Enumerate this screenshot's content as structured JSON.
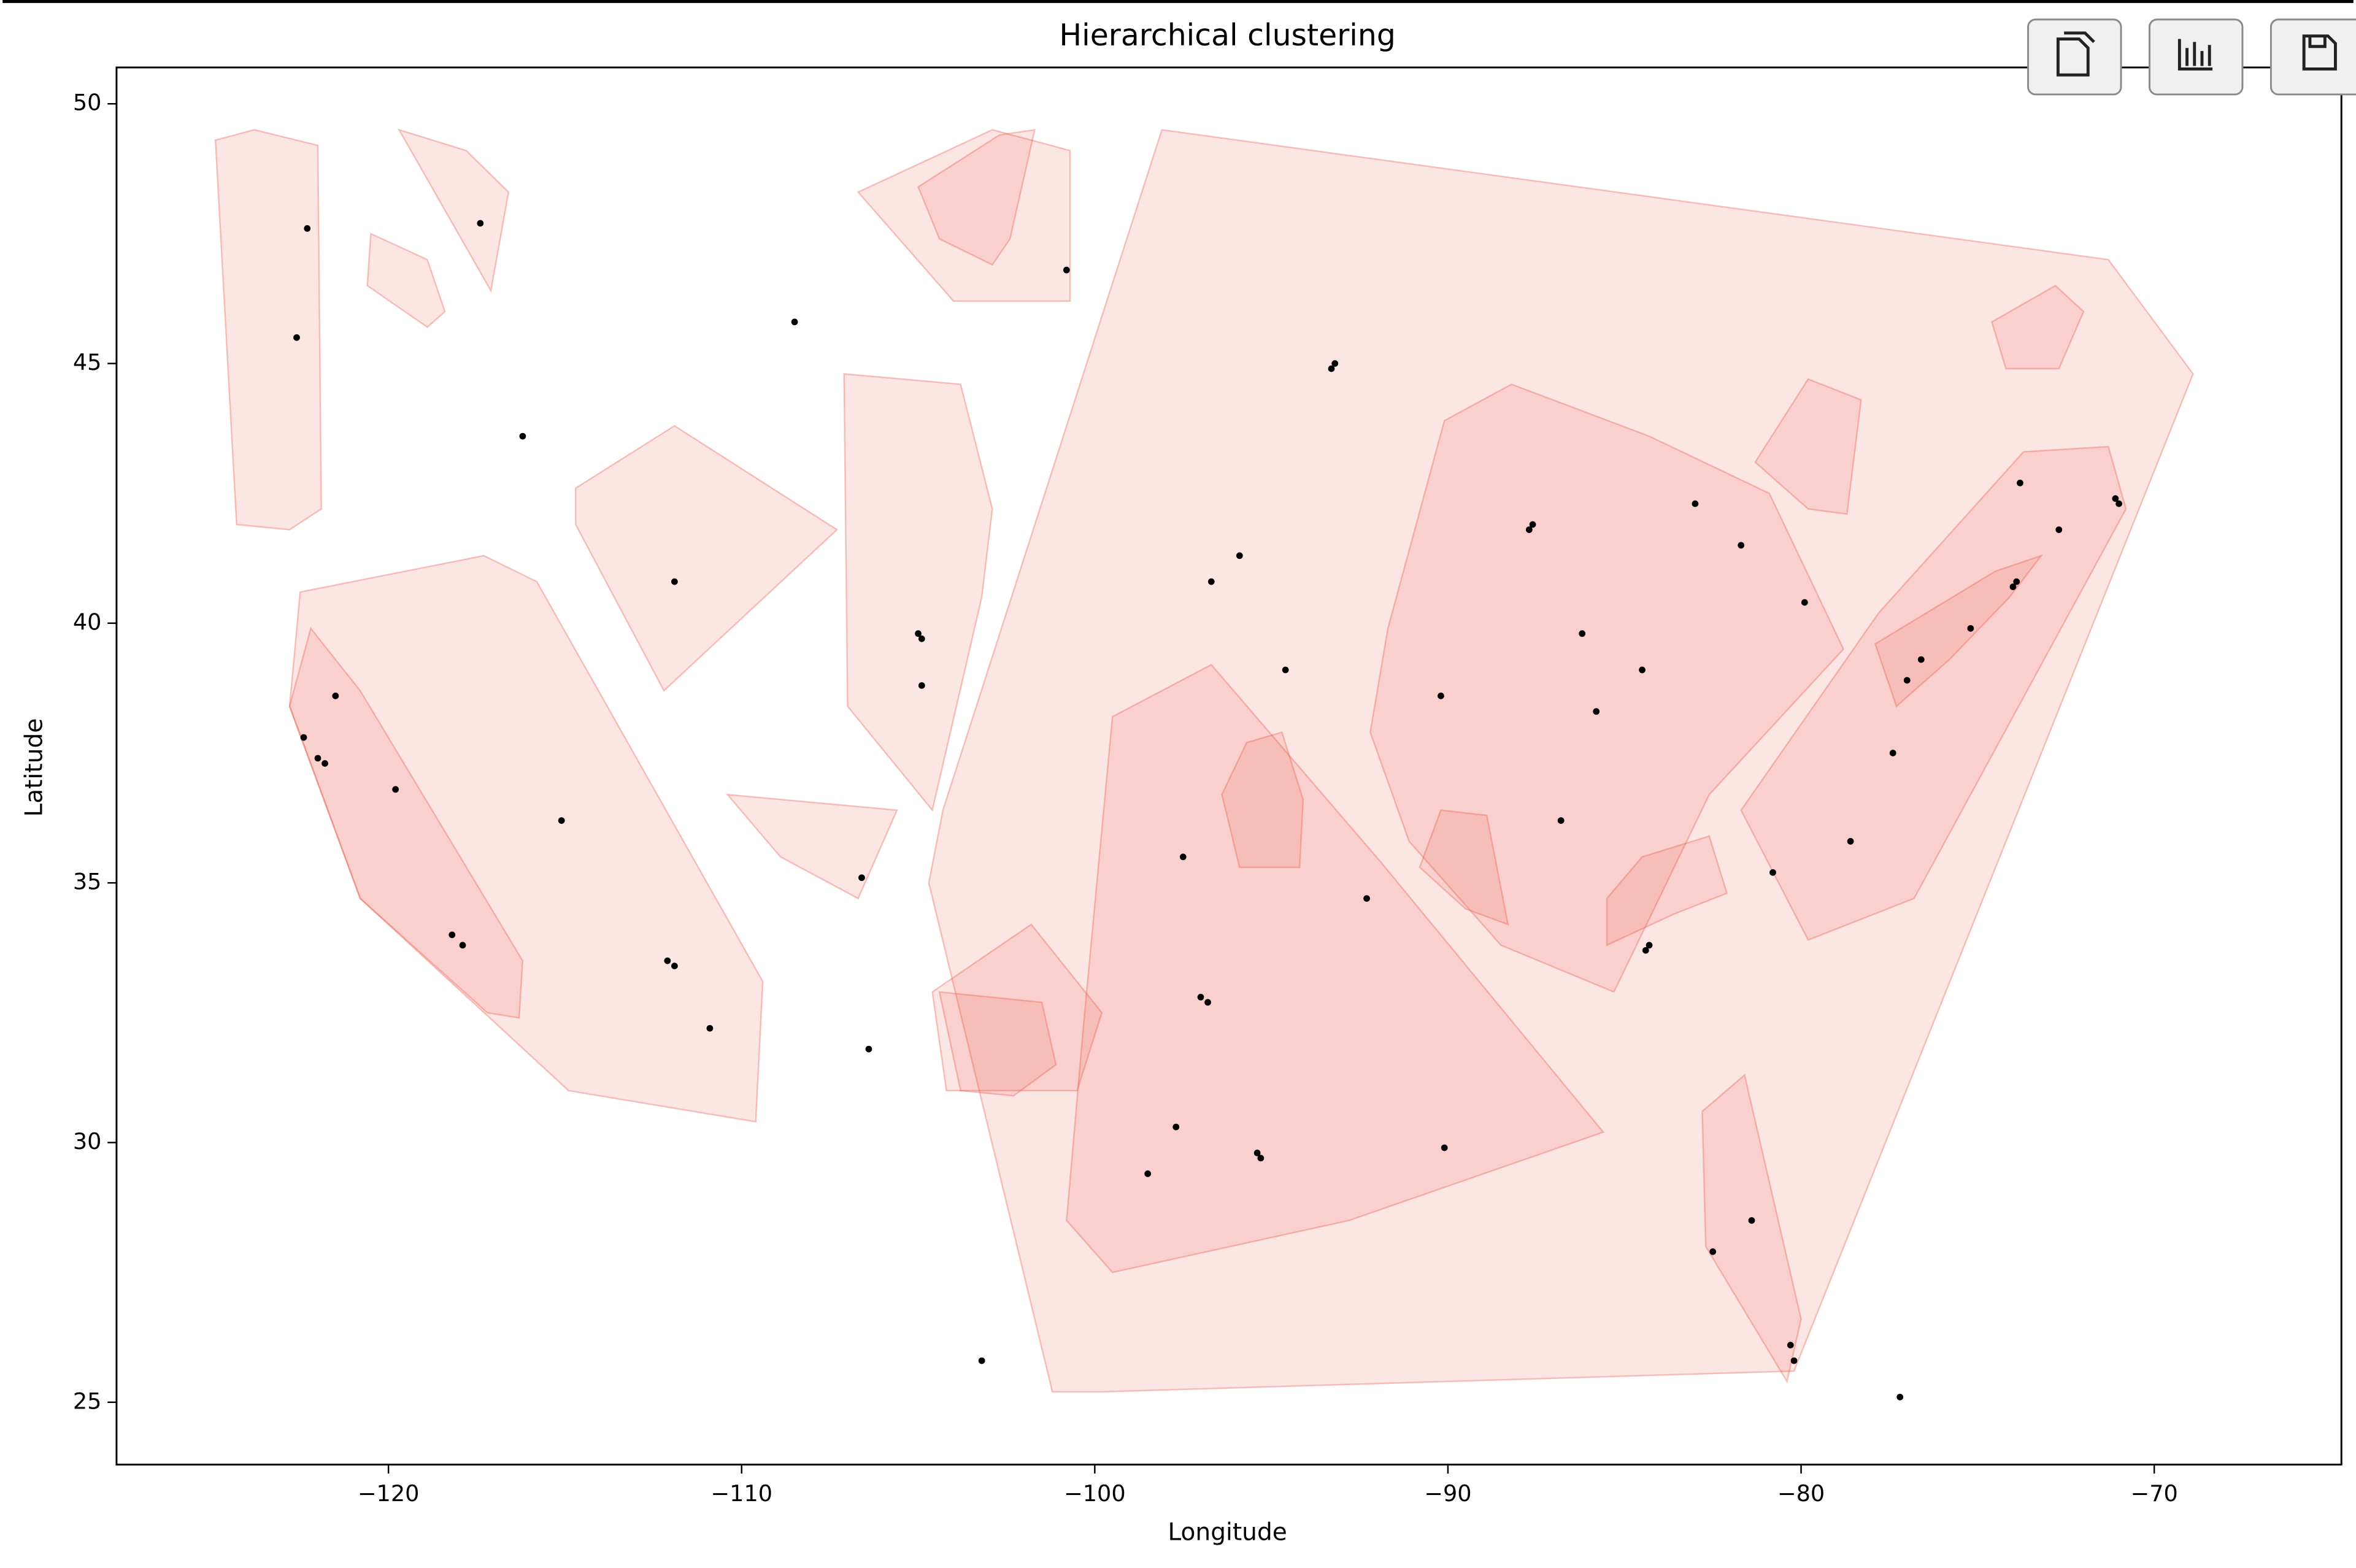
{
  "chart_data": {
    "type": "scatter",
    "title": "Hierarchical clustering",
    "x_label": "Longitude",
    "y_label": "Latitude",
    "xlim": [
      -127.7,
      -64.7
    ],
    "ylim": [
      23.8,
      50.7
    ],
    "xticks": [
      {
        "value": -120,
        "label": "−120"
      },
      {
        "value": -110,
        "label": "−110"
      },
      {
        "value": -100,
        "label": "−100"
      },
      {
        "value": -90,
        "label": "−90"
      },
      {
        "value": -80,
        "label": "−80"
      },
      {
        "value": -70,
        "label": "−70"
      }
    ],
    "yticks": [
      25,
      30,
      35,
      40,
      45,
      50
    ],
    "hull_color": "#e8564a",
    "series": [
      {
        "color": "#000000",
        "x": [
          -118.2,
          -117.9,
          -122.4,
          -122.0,
          -121.8,
          -112.1,
          -111.9,
          -104.9,
          -105.0,
          -97.0,
          -96.8,
          -95.4,
          -95.3,
          -98.5,
          -97.7,
          -90.1,
          -87.6,
          -87.7,
          -84.4,
          -84.3,
          -80.2,
          -80.3,
          -81.4,
          -82.5,
          -77.0,
          -75.2,
          -74.0,
          -73.9,
          -71.1,
          -71.0,
          -83.0,
          -81.7,
          -79.9,
          -86.2,
          -84.5,
          -90.2,
          -94.6,
          -93.3,
          -93.2,
          -122.3,
          -122.6,
          -111.9,
          -115.1,
          -106.6,
          -117.4,
          -116.2,
          -100.8,
          -96.7,
          -95.9,
          -97.5,
          -92.3,
          -86.8,
          -85.8,
          -80.8,
          -78.6,
          -77.4,
          -76.6,
          -72.7,
          -73.8,
          -106.4,
          -110.9,
          -119.8,
          -121.5,
          -103.2,
          -77.2,
          -108.5,
          -104.9
        ],
        "y": [
          34.0,
          33.8,
          37.8,
          37.4,
          37.3,
          33.5,
          33.4,
          39.7,
          39.8,
          32.8,
          32.7,
          29.8,
          29.7,
          29.4,
          30.3,
          29.9,
          41.9,
          41.8,
          33.7,
          33.8,
          25.8,
          26.1,
          28.5,
          27.9,
          38.9,
          39.9,
          40.7,
          40.8,
          42.4,
          42.3,
          42.3,
          41.5,
          40.4,
          39.8,
          39.1,
          38.6,
          39.1,
          44.9,
          45.0,
          47.6,
          45.5,
          40.8,
          36.2,
          35.1,
          47.7,
          43.6,
          46.8,
          40.8,
          41.3,
          35.5,
          34.7,
          36.2,
          38.3,
          35.2,
          35.8,
          37.5,
          39.3,
          41.8,
          42.7,
          31.8,
          32.2,
          36.8,
          38.6,
          25.8,
          25.1,
          45.8,
          38.8
        ]
      }
    ],
    "hulls": [
      {
        "x": [
          -98.1,
          -71.3,
          -68.9,
          -80.2,
          -99.8,
          -101.2,
          -104.7,
          -104.3
        ],
        "y": [
          49.5,
          47.0,
          44.8,
          25.6,
          25.2,
          25.2,
          35.0,
          36.4
        ]
      },
      {
        "x": [
          -122.5,
          -117.3,
          -115.8,
          -109.4,
          -109.6,
          -114.9,
          -120.8,
          -122.8
        ],
        "y": [
          40.6,
          41.3,
          40.8,
          33.1,
          30.4,
          31.0,
          34.7,
          38.4
        ]
      },
      {
        "x": [
          -122.2,
          -120.8,
          -116.2,
          -116.3,
          -117.2,
          -120.8,
          -122.8
        ],
        "y": [
          39.9,
          38.7,
          33.5,
          32.4,
          32.5,
          34.7,
          38.4
        ]
      },
      {
        "x": [
          -124.9,
          -123.8,
          -122.0,
          -121.9,
          -122.8,
          -124.3
        ],
        "y": [
          49.3,
          49.5,
          49.2,
          42.2,
          41.8,
          41.9
        ]
      },
      {
        "x": [
          -106.7,
          -102.9,
          -100.7,
          -100.7,
          -104.0
        ],
        "y": [
          48.3,
          49.5,
          49.1,
          46.2,
          46.2
        ]
      },
      {
        "x": [
          -105.0,
          -102.7,
          -101.7,
          -102.4,
          -102.9,
          -104.4
        ],
        "y": [
          48.4,
          49.4,
          49.5,
          47.4,
          46.9,
          47.4
        ]
      },
      {
        "x": [
          -107.1,
          -103.8,
          -102.9,
          -103.2,
          -104.6,
          -107.0
        ],
        "y": [
          44.8,
          44.6,
          42.2,
          40.5,
          36.4,
          38.4
        ]
      },
      {
        "x": [
          -114.7,
          -111.9,
          -107.3,
          -112.2,
          -114.7
        ],
        "y": [
          42.6,
          43.8,
          41.8,
          38.7,
          41.9
        ]
      },
      {
        "x": [
          -99.5,
          -96.7,
          -91.9,
          -85.6,
          -92.8,
          -99.5,
          -100.8,
          -100.3
        ],
        "y": [
          38.2,
          39.2,
          35.4,
          30.2,
          28.5,
          27.5,
          28.5,
          32.4
        ]
      },
      {
        "x": [
          -90.1,
          -88.2,
          -84.3,
          -80.9,
          -78.8,
          -82.6,
          -85.3,
          -88.5,
          -91.1,
          -92.2,
          -91.7
        ],
        "y": [
          43.9,
          44.6,
          43.6,
          42.5,
          39.5,
          36.7,
          32.9,
          33.8,
          35.8,
          37.9,
          39.9
        ]
      },
      {
        "x": [
          -81.7,
          -77.8,
          -73.7,
          -71.3,
          -70.8,
          -76.8,
          -79.8
        ],
        "y": [
          36.4,
          40.2,
          43.3,
          43.4,
          42.2,
          34.7,
          33.9
        ]
      },
      {
        "x": [
          -82.8,
          -81.6,
          -80.0,
          -80.4,
          -82.7
        ],
        "y": [
          30.6,
          31.3,
          26.6,
          25.4,
          28.0
        ]
      },
      {
        "x": [
          -104.6,
          -101.8,
          -99.8,
          -100.5,
          -104.2
        ],
        "y": [
          32.9,
          34.2,
          32.5,
          31.0,
          31.0
        ]
      },
      {
        "x": [
          -104.4,
          -101.5,
          -101.1,
          -102.3,
          -103.8
        ],
        "y": [
          32.9,
          32.7,
          31.5,
          30.9,
          31.0
        ]
      },
      {
        "x": [
          -74.6,
          -72.8,
          -72.0,
          -72.7,
          -74.2
        ],
        "y": [
          45.8,
          46.5,
          46.0,
          44.9,
          44.9
        ]
      },
      {
        "x": [
          -81.3,
          -79.8,
          -78.3,
          -78.7,
          -79.8
        ],
        "y": [
          43.1,
          44.7,
          44.3,
          42.1,
          42.2
        ]
      },
      {
        "x": [
          -110.4,
          -105.6,
          -106.7,
          -108.9
        ],
        "y": [
          36.7,
          36.4,
          34.7,
          35.5
        ]
      },
      {
        "x": [
          -119.7,
          -117.8,
          -116.6,
          -117.1
        ],
        "y": [
          49.5,
          49.1,
          48.3,
          46.4
        ]
      },
      {
        "x": [
          -120.5,
          -118.9,
          -118.4,
          -118.9,
          -120.6
        ],
        "y": [
          47.5,
          47.0,
          46.0,
          45.7,
          46.5
        ]
      },
      {
        "x": [
          -95.7,
          -94.7,
          -94.1,
          -94.2,
          -95.9,
          -96.4
        ],
        "y": [
          37.7,
          37.9,
          36.6,
          35.3,
          35.3,
          36.7
        ]
      },
      {
        "x": [
          -90.2,
          -88.9,
          -88.3,
          -89.5,
          -90.8
        ],
        "y": [
          36.4,
          36.3,
          34.2,
          34.5,
          35.3
        ]
      },
      {
        "x": [
          -77.9,
          -74.5,
          -73.2,
          -74.1,
          -75.8,
          -77.3
        ],
        "y": [
          39.6,
          41.0,
          41.3,
          40.5,
          39.3,
          38.4
        ]
      },
      {
        "x": [
          -85.5,
          -84.5,
          -82.6,
          -82.1,
          -83.6,
          -85.5
        ],
        "y": [
          34.7,
          35.5,
          35.9,
          34.8,
          34.4,
          33.8
        ]
      }
    ]
  }
}
